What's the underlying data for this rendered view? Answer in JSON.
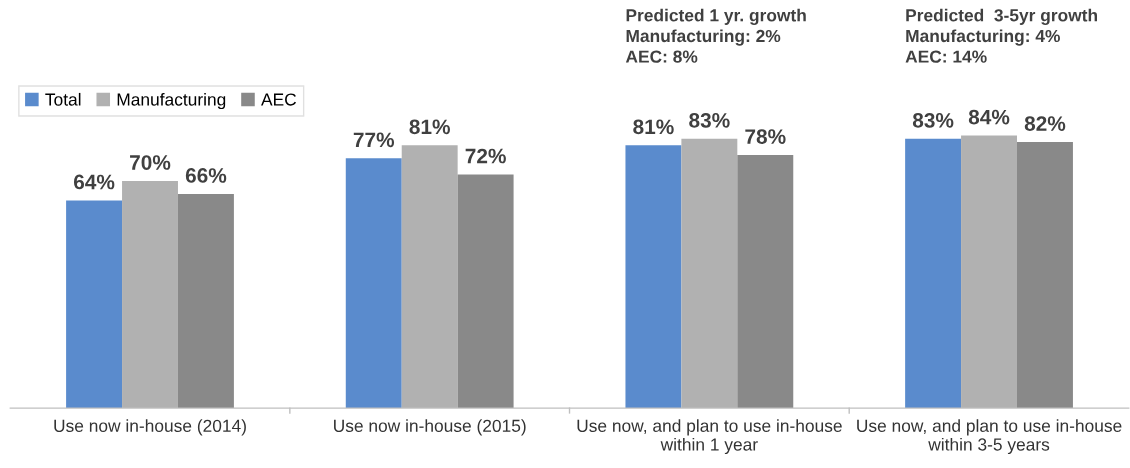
{
  "chart_data": {
    "type": "bar",
    "categories": [
      "Use now in-house (2014)",
      "Use now in-house (2015)",
      "Use now, and plan to use in-house\nwithin 1 year",
      "Use now, and plan to use in-house\nwithin 3-5 years"
    ],
    "series": [
      {
        "name": "Total",
        "color": "#5a8bcd",
        "values": [
          64,
          77,
          81,
          83
        ],
        "value_labels": [
          "64%",
          "77%",
          "81%",
          "83%"
        ]
      },
      {
        "name": "Manufacturing",
        "color": "#b1b1b1",
        "values": [
          70,
          81,
          83,
          84
        ],
        "value_labels": [
          "70%",
          "81%",
          "83%",
          "84%"
        ]
      },
      {
        "name": "AEC",
        "color": "#898989",
        "values": [
          66,
          72,
          78,
          82
        ],
        "value_labels": [
          "66%",
          "72%",
          "78%",
          "82%"
        ]
      }
    ],
    "annotations": [
      "Predicted 1 yr. growth\nManufacturing: 2%\nAEC: 8%",
      "Predicted  3-5yr growth\nManufacturing: 4%\nAEC: 14%"
    ],
    "legend": "top left",
    "grid": false,
    "tick_labels": "x"
  }
}
